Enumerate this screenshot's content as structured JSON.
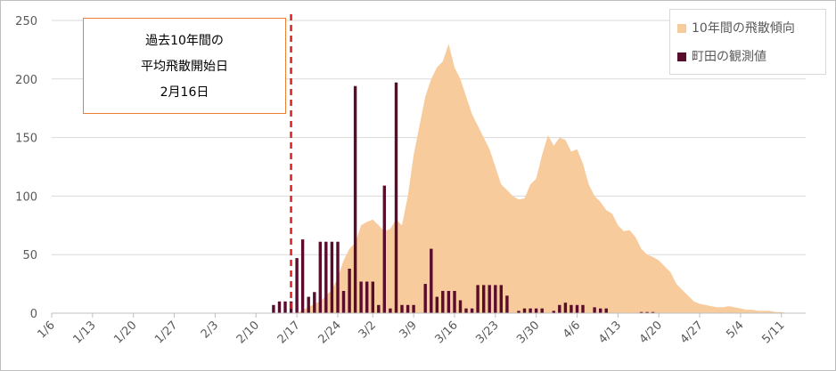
{
  "chart_data": {
    "type": "area",
    "title": "",
    "xlabel": "",
    "ylabel": "",
    "ylim": [
      0,
      250
    ],
    "yticks": [
      "0",
      "50",
      "100",
      "150",
      "200",
      "250"
    ],
    "grid": true,
    "legend_position": "top-right",
    "x_tick_labels": [
      "1/6",
      "1/13",
      "1/20",
      "1/27",
      "2/3",
      "2/10",
      "2/17",
      "2/24",
      "3/2",
      "3/9",
      "3/16",
      "3/23",
      "3/30",
      "4/6",
      "4/13",
      "4/20",
      "4/27",
      "5/4",
      "5/11"
    ],
    "x_start": "1/6",
    "series": [
      {
        "name": "10年間の飛散傾向",
        "type": "area",
        "color": "#f8cb9c",
        "points": [
          [
            "2/17",
            0
          ],
          [
            "2/18",
            3
          ],
          [
            "2/19",
            5
          ],
          [
            "2/20",
            8
          ],
          [
            "2/21",
            10
          ],
          [
            "2/22",
            15
          ],
          [
            "2/23",
            20
          ],
          [
            "2/24",
            30
          ],
          [
            "2/25",
            45
          ],
          [
            "2/26",
            55
          ],
          [
            "2/27",
            60
          ],
          [
            "2/28",
            75
          ],
          [
            "3/1",
            78
          ],
          [
            "3/2",
            80
          ],
          [
            "3/3",
            75
          ],
          [
            "3/4",
            70
          ],
          [
            "3/5",
            72
          ],
          [
            "3/6",
            80
          ],
          [
            "3/7",
            75
          ],
          [
            "3/8",
            100
          ],
          [
            "3/9",
            135
          ],
          [
            "3/10",
            160
          ],
          [
            "3/11",
            185
          ],
          [
            "3/12",
            200
          ],
          [
            "3/13",
            210
          ],
          [
            "3/14",
            215
          ],
          [
            "3/15",
            230
          ],
          [
            "3/16",
            210
          ],
          [
            "3/17",
            200
          ],
          [
            "3/18",
            185
          ],
          [
            "3/19",
            170
          ],
          [
            "3/20",
            160
          ],
          [
            "3/21",
            150
          ],
          [
            "3/22",
            140
          ],
          [
            "3/23",
            125
          ],
          [
            "3/24",
            110
          ],
          [
            "3/25",
            105
          ],
          [
            "3/26",
            100
          ],
          [
            "3/27",
            97
          ],
          [
            "3/28",
            98
          ],
          [
            "3/29",
            110
          ],
          [
            "3/30",
            115
          ],
          [
            "3/31",
            135
          ],
          [
            "4/1",
            152
          ],
          [
            "4/2",
            143
          ],
          [
            "4/3",
            150
          ],
          [
            "4/4",
            148
          ],
          [
            "4/5",
            138
          ],
          [
            "4/6",
            140
          ],
          [
            "4/7",
            128
          ],
          [
            "4/8",
            110
          ],
          [
            "4/9",
            100
          ],
          [
            "4/10",
            95
          ],
          [
            "4/11",
            88
          ],
          [
            "4/12",
            85
          ],
          [
            "4/13",
            75
          ],
          [
            "4/14",
            70
          ],
          [
            "4/15",
            71
          ],
          [
            "4/16",
            65
          ],
          [
            "4/17",
            55
          ],
          [
            "4/18",
            50
          ],
          [
            "4/19",
            48
          ],
          [
            "4/20",
            45
          ],
          [
            "4/21",
            40
          ],
          [
            "4/22",
            35
          ],
          [
            "4/23",
            25
          ],
          [
            "4/24",
            20
          ],
          [
            "4/25",
            15
          ],
          [
            "4/26",
            10
          ],
          [
            "4/27",
            8
          ],
          [
            "4/28",
            7
          ],
          [
            "4/29",
            6
          ],
          [
            "4/30",
            5
          ],
          [
            "5/1",
            5
          ],
          [
            "5/2",
            6
          ],
          [
            "5/3",
            5
          ],
          [
            "5/4",
            4
          ],
          [
            "5/5",
            3
          ],
          [
            "5/6",
            3
          ],
          [
            "5/7",
            2
          ],
          [
            "5/8",
            2
          ],
          [
            "5/9",
            2
          ],
          [
            "5/10",
            1
          ],
          [
            "5/11",
            1
          ],
          [
            "5/12",
            0
          ]
        ]
      },
      {
        "name": "町田の観測値",
        "type": "bar",
        "color": "#5a0c2c",
        "points": [
          [
            "2/13",
            7
          ],
          [
            "2/14",
            10
          ],
          [
            "2/15",
            10
          ],
          [
            "2/16",
            10
          ],
          [
            "2/17",
            47
          ],
          [
            "2/18",
            63
          ],
          [
            "2/19",
            14
          ],
          [
            "2/20",
            18
          ],
          [
            "2/21",
            61
          ],
          [
            "2/22",
            61
          ],
          [
            "2/23",
            61
          ],
          [
            "2/24",
            61
          ],
          [
            "2/25",
            19
          ],
          [
            "2/26",
            38
          ],
          [
            "2/27",
            194
          ],
          [
            "2/28",
            27
          ],
          [
            "3/1",
            27
          ],
          [
            "3/2",
            27
          ],
          [
            "3/3",
            7
          ],
          [
            "3/4",
            109
          ],
          [
            "3/5",
            4
          ],
          [
            "3/6",
            197
          ],
          [
            "3/7",
            7
          ],
          [
            "3/8",
            7
          ],
          [
            "3/9",
            7
          ],
          [
            "3/11",
            25
          ],
          [
            "3/12",
            55
          ],
          [
            "3/13",
            14
          ],
          [
            "3/14",
            19
          ],
          [
            "3/15",
            19
          ],
          [
            "3/16",
            19
          ],
          [
            "3/17",
            11
          ],
          [
            "3/18",
            4
          ],
          [
            "3/19",
            4
          ],
          [
            "3/20",
            24
          ],
          [
            "3/21",
            24
          ],
          [
            "3/22",
            24
          ],
          [
            "3/23",
            24
          ],
          [
            "3/24",
            24
          ],
          [
            "3/25",
            15
          ],
          [
            "3/27",
            2
          ],
          [
            "3/28",
            4
          ],
          [
            "3/29",
            4
          ],
          [
            "3/30",
            4
          ],
          [
            "3/31",
            4
          ],
          [
            "4/2",
            2
          ],
          [
            "4/3",
            7
          ],
          [
            "4/4",
            9
          ],
          [
            "4/5",
            7
          ],
          [
            "4/6",
            7
          ],
          [
            "4/7",
            7
          ],
          [
            "4/9",
            5
          ],
          [
            "4/10",
            4
          ],
          [
            "4/11",
            4
          ],
          [
            "4/17",
            1
          ],
          [
            "4/18",
            1
          ],
          [
            "4/19",
            1
          ]
        ]
      }
    ],
    "reference_line": {
      "x": "2/16",
      "color": "#e02020",
      "style": "dashed"
    },
    "annotation": {
      "lines": [
        "過去10年間の",
        "平均飛散開始日",
        "2月16日"
      ],
      "border_color": "#ed7d31"
    }
  }
}
